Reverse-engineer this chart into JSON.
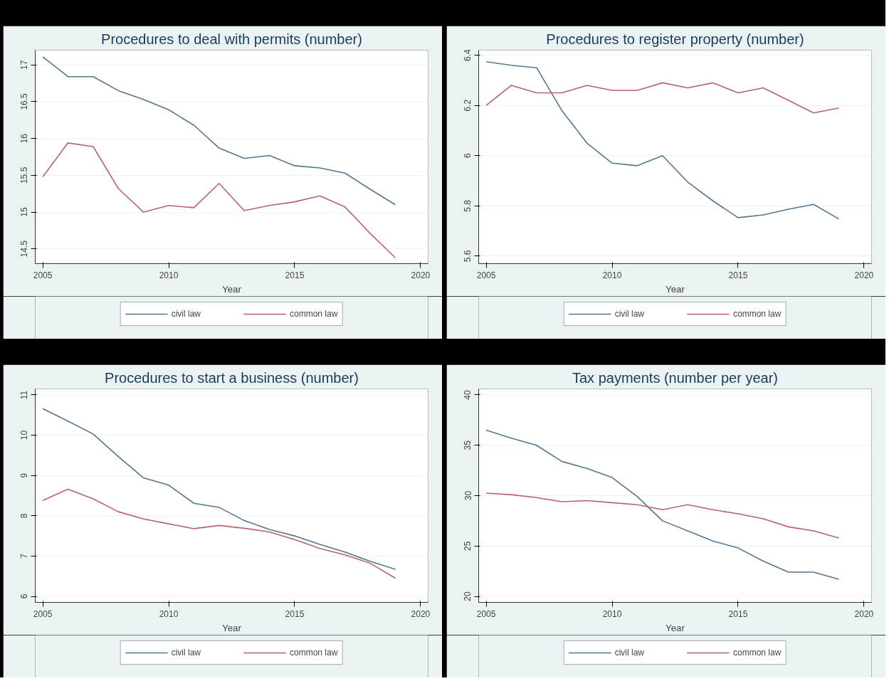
{
  "chart_data": [
    {
      "type": "line",
      "title": "Procedures to deal with permits (number)",
      "xlabel": "Year",
      "x": [
        2005,
        2006,
        2007,
        2008,
        2009,
        2010,
        2011,
        2012,
        2013,
        2014,
        2015,
        2016,
        2017,
        2018,
        2019
      ],
      "series": [
        {
          "name": "civil law",
          "color": "#55768f",
          "values": [
            17.11,
            16.84,
            16.84,
            16.65,
            16.53,
            16.39,
            16.18,
            15.87,
            15.73,
            15.77,
            15.63,
            15.6,
            15.53,
            15.31,
            15.1
          ]
        },
        {
          "name": "common law",
          "color": "#b9636b",
          "values": [
            15.48,
            15.94,
            15.89,
            15.32,
            15.0,
            15.09,
            15.06,
            15.39,
            15.02,
            15.09,
            15.14,
            15.22,
            15.07,
            14.71,
            14.38
          ]
        }
      ],
      "xlim": [
        2004.7,
        2020.3
      ],
      "ylim": [
        14.3,
        17.2
      ],
      "xticks": [
        2005,
        2010,
        2015,
        2020
      ],
      "yticks": [
        14.5,
        15,
        15.5,
        16,
        16.5,
        17
      ],
      "grid": "y",
      "legend": "bottom",
      "line_style": "solid",
      "marker": "none"
    },
    {
      "type": "line",
      "title": "Procedures to register property (number)",
      "xlabel": "Year",
      "x": [
        2005,
        2006,
        2007,
        2008,
        2009,
        2010,
        2011,
        2012,
        2013,
        2014,
        2015,
        2016,
        2017,
        2018,
        2019
      ],
      "series": [
        {
          "name": "civil law",
          "color": "#55768f",
          "values": [
            6.374,
            6.36,
            6.35,
            6.18,
            6.05,
            5.97,
            5.96,
            6.0,
            5.895,
            5.82,
            5.753,
            5.764,
            5.787,
            5.806,
            5.748
          ]
        },
        {
          "name": "common law",
          "color": "#b9636b",
          "values": [
            6.2,
            6.28,
            6.25,
            6.25,
            6.28,
            6.26,
            6.26,
            6.29,
            6.27,
            6.29,
            6.25,
            6.27,
            6.22,
            6.17,
            6.19
          ]
        }
      ],
      "xlim": [
        2004.7,
        2020.3
      ],
      "ylim": [
        5.57,
        6.42
      ],
      "xticks": [
        2005,
        2010,
        2015,
        2020
      ],
      "yticks": [
        5.6,
        5.8,
        6,
        6.2,
        6.4
      ],
      "grid": "y",
      "legend": "bottom",
      "line_style": "solid",
      "marker": "none"
    },
    {
      "type": "line",
      "title": "Procedures to start a business (number)",
      "xlabel": "Year",
      "x": [
        2005,
        2006,
        2007,
        2008,
        2009,
        2010,
        2011,
        2012,
        2013,
        2014,
        2015,
        2016,
        2017,
        2018,
        2019
      ],
      "series": [
        {
          "name": "civil law",
          "color": "#55768f",
          "values": [
            10.66,
            10.35,
            10.03,
            9.47,
            8.94,
            8.76,
            8.31,
            8.21,
            7.88,
            7.66,
            7.5,
            7.29,
            7.1,
            6.87,
            6.67
          ]
        },
        {
          "name": "common law",
          "color": "#b9636b",
          "values": [
            8.38,
            8.66,
            8.42,
            8.1,
            7.92,
            7.8,
            7.68,
            7.76,
            7.69,
            7.6,
            7.41,
            7.19,
            7.03,
            6.82,
            6.45
          ]
        }
      ],
      "xlim": [
        2004.7,
        2020.3
      ],
      "ylim": [
        5.85,
        11.15
      ],
      "xticks": [
        2005,
        2010,
        2015,
        2020
      ],
      "yticks": [
        6,
        7,
        8,
        9,
        10,
        11
      ],
      "grid": "y",
      "legend": "bottom",
      "line_style": "solid",
      "marker": "none"
    },
    {
      "type": "line",
      "title": "Tax payments (number per year)",
      "xlabel": "Year",
      "x": [
        2005,
        2006,
        2007,
        2008,
        2009,
        2010,
        2011,
        2012,
        2013,
        2014,
        2015,
        2016,
        2017,
        2018,
        2019
      ],
      "series": [
        {
          "name": "civil law",
          "color": "#55768f",
          "values": [
            36.5,
            35.7,
            35.0,
            33.4,
            32.7,
            31.8,
            29.9,
            27.5,
            26.5,
            25.5,
            24.8,
            23.5,
            22.4,
            22.4,
            21.7
          ]
        },
        {
          "name": "common law",
          "color": "#b9636b",
          "values": [
            30.25,
            30.1,
            29.8,
            29.4,
            29.5,
            29.3,
            29.1,
            28.6,
            29.1,
            28.6,
            28.2,
            27.7,
            26.9,
            26.5,
            25.8
          ]
        }
      ],
      "xlim": [
        2004.7,
        2020.3
      ],
      "ylim": [
        19.4,
        40.6
      ],
      "xticks": [
        2005,
        2010,
        2015,
        2020
      ],
      "yticks": [
        20,
        25,
        30,
        35,
        40
      ],
      "grid": "y",
      "legend": "bottom",
      "line_style": "solid",
      "marker": "none"
    }
  ]
}
